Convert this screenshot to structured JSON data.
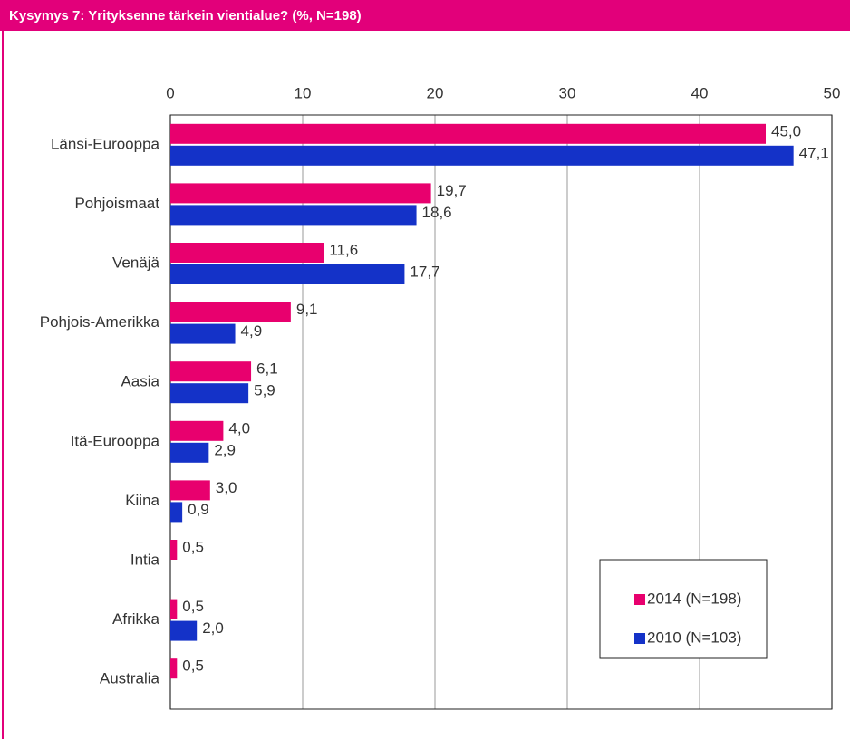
{
  "chart_data": {
    "type": "bar",
    "orientation": "horizontal",
    "title": "Kysymys 7: Yrityksenne tärkein vientialue? (%, N=198)",
    "categories": [
      "Länsi-Eurooppa",
      "Pohjoismaat",
      "Venäjä",
      "Pohjois-Amerikka",
      "Aasia",
      "Itä-Eurooppa",
      "Kiina",
      "Intia",
      "Afrikka",
      "Australia"
    ],
    "series": [
      {
        "name": "2014 (N=198)",
        "color": "#e8006e",
        "values": [
          45.0,
          19.7,
          11.6,
          9.1,
          6.1,
          4.0,
          3.0,
          0.5,
          0.5,
          0.5
        ],
        "value_labels": [
          "45,0",
          "19,7",
          "11,6",
          "9,1",
          "6,1",
          "4,0",
          "3,0",
          "0,5",
          "0,5",
          "0,5"
        ]
      },
      {
        "name": "2010 (N=103)",
        "color": "#1432c8",
        "values": [
          47.1,
          18.6,
          17.7,
          4.9,
          5.9,
          2.9,
          0.9,
          null,
          2.0,
          null
        ],
        "value_labels": [
          "47,1",
          "18,6",
          "17,7",
          "4,9",
          "5,9",
          "2,9",
          "0,9",
          null,
          "2,0",
          null
        ]
      }
    ],
    "xlim": [
      0,
      50
    ],
    "xticks": [
      0,
      10,
      20,
      30,
      40,
      50
    ],
    "grid": true,
    "legend": "lower right"
  }
}
